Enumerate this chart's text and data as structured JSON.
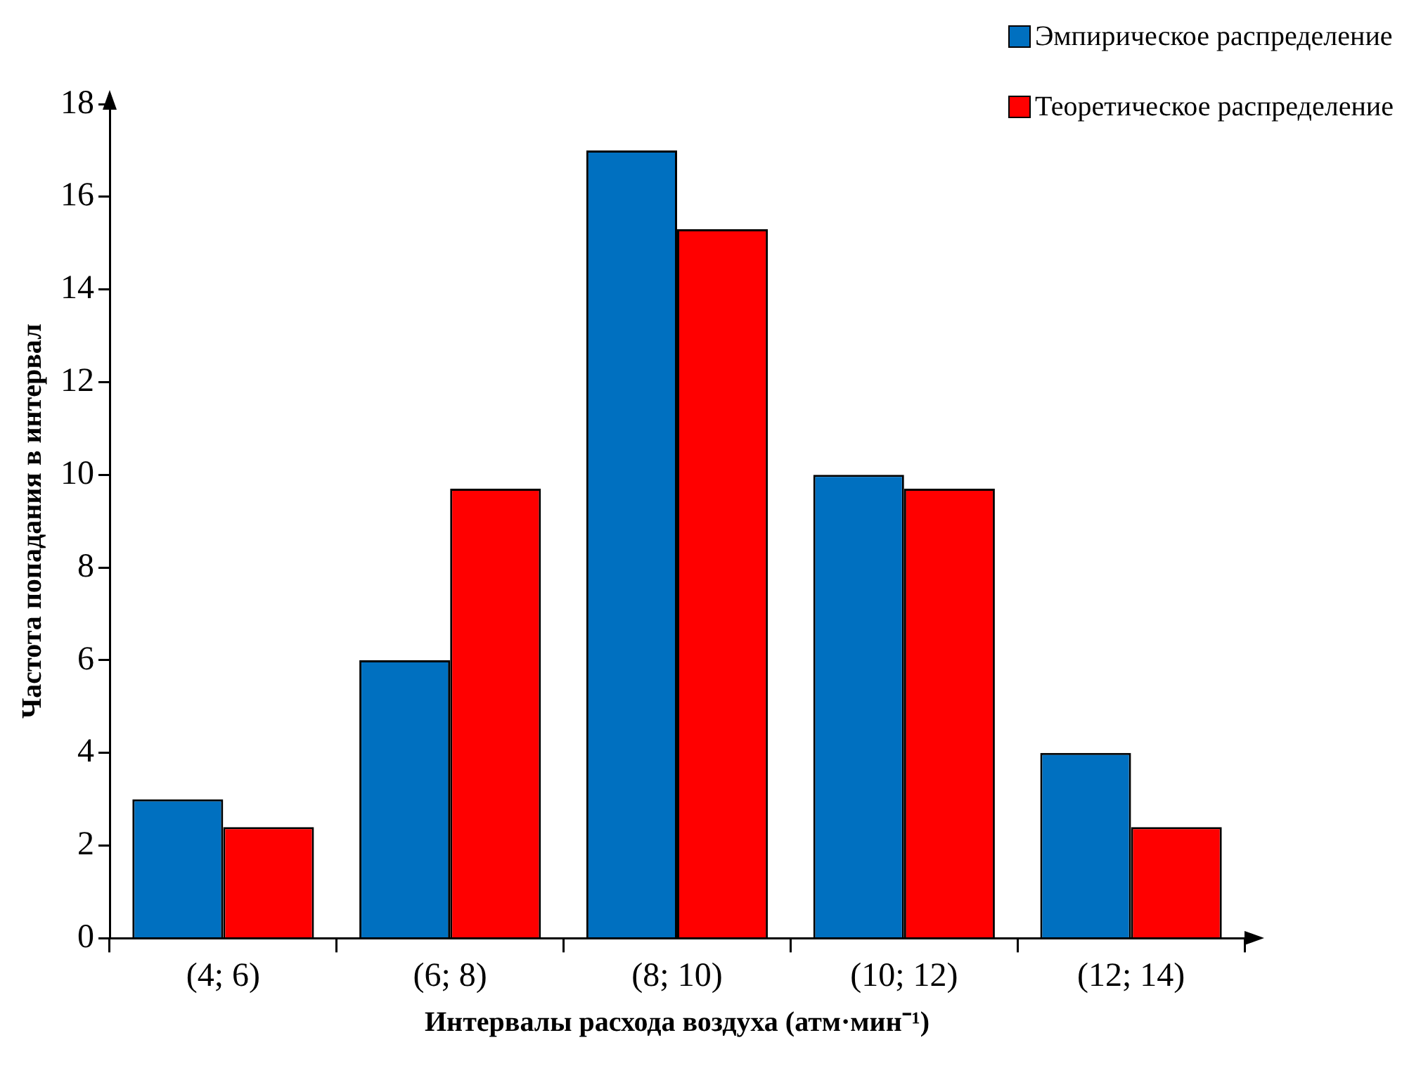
{
  "chart_data": {
    "type": "bar",
    "xlabel": "Интервалы расхода воздуха (атм·мин⁻¹)",
    "ylabel": "Частота попадания в интервал",
    "categories": [
      "(4; 6)",
      "(6; 8)",
      "(8; 10)",
      "(10; 12)",
      "(12; 14)"
    ],
    "series": [
      {
        "name": "Эмпирическое распределение",
        "color": "#0070c0",
        "values": [
          3,
          6,
          17,
          10,
          4
        ]
      },
      {
        "name": "Теоретическое распределение",
        "color": "#ff0000",
        "values": [
          2.4,
          9.7,
          15.3,
          9.7,
          2.4
        ]
      }
    ],
    "ylim": [
      0,
      18
    ],
    "yticks": [
      0,
      2,
      4,
      6,
      8,
      10,
      12,
      14,
      16,
      18
    ],
    "grid": false,
    "legend": "top right"
  }
}
